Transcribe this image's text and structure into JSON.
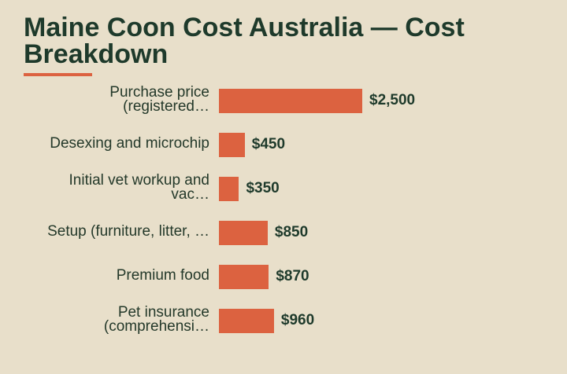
{
  "chart_data": {
    "type": "bar",
    "orientation": "horizontal",
    "title": "Maine Coon Cost Australia — Cost Breakdown",
    "categories": [
      "Purchase price (registered…",
      "Desexing and microchip",
      "Initial vet workup and vac…",
      "Setup (furniture, litter, …",
      "Premium food",
      "Pet insurance (comprehensi…"
    ],
    "values": [
      2500,
      450,
      350,
      850,
      870,
      960
    ],
    "value_labels": [
      "$2,500",
      "$450",
      "$350",
      "$850",
      "$870",
      "$960"
    ],
    "color": "#dc6240"
  }
}
